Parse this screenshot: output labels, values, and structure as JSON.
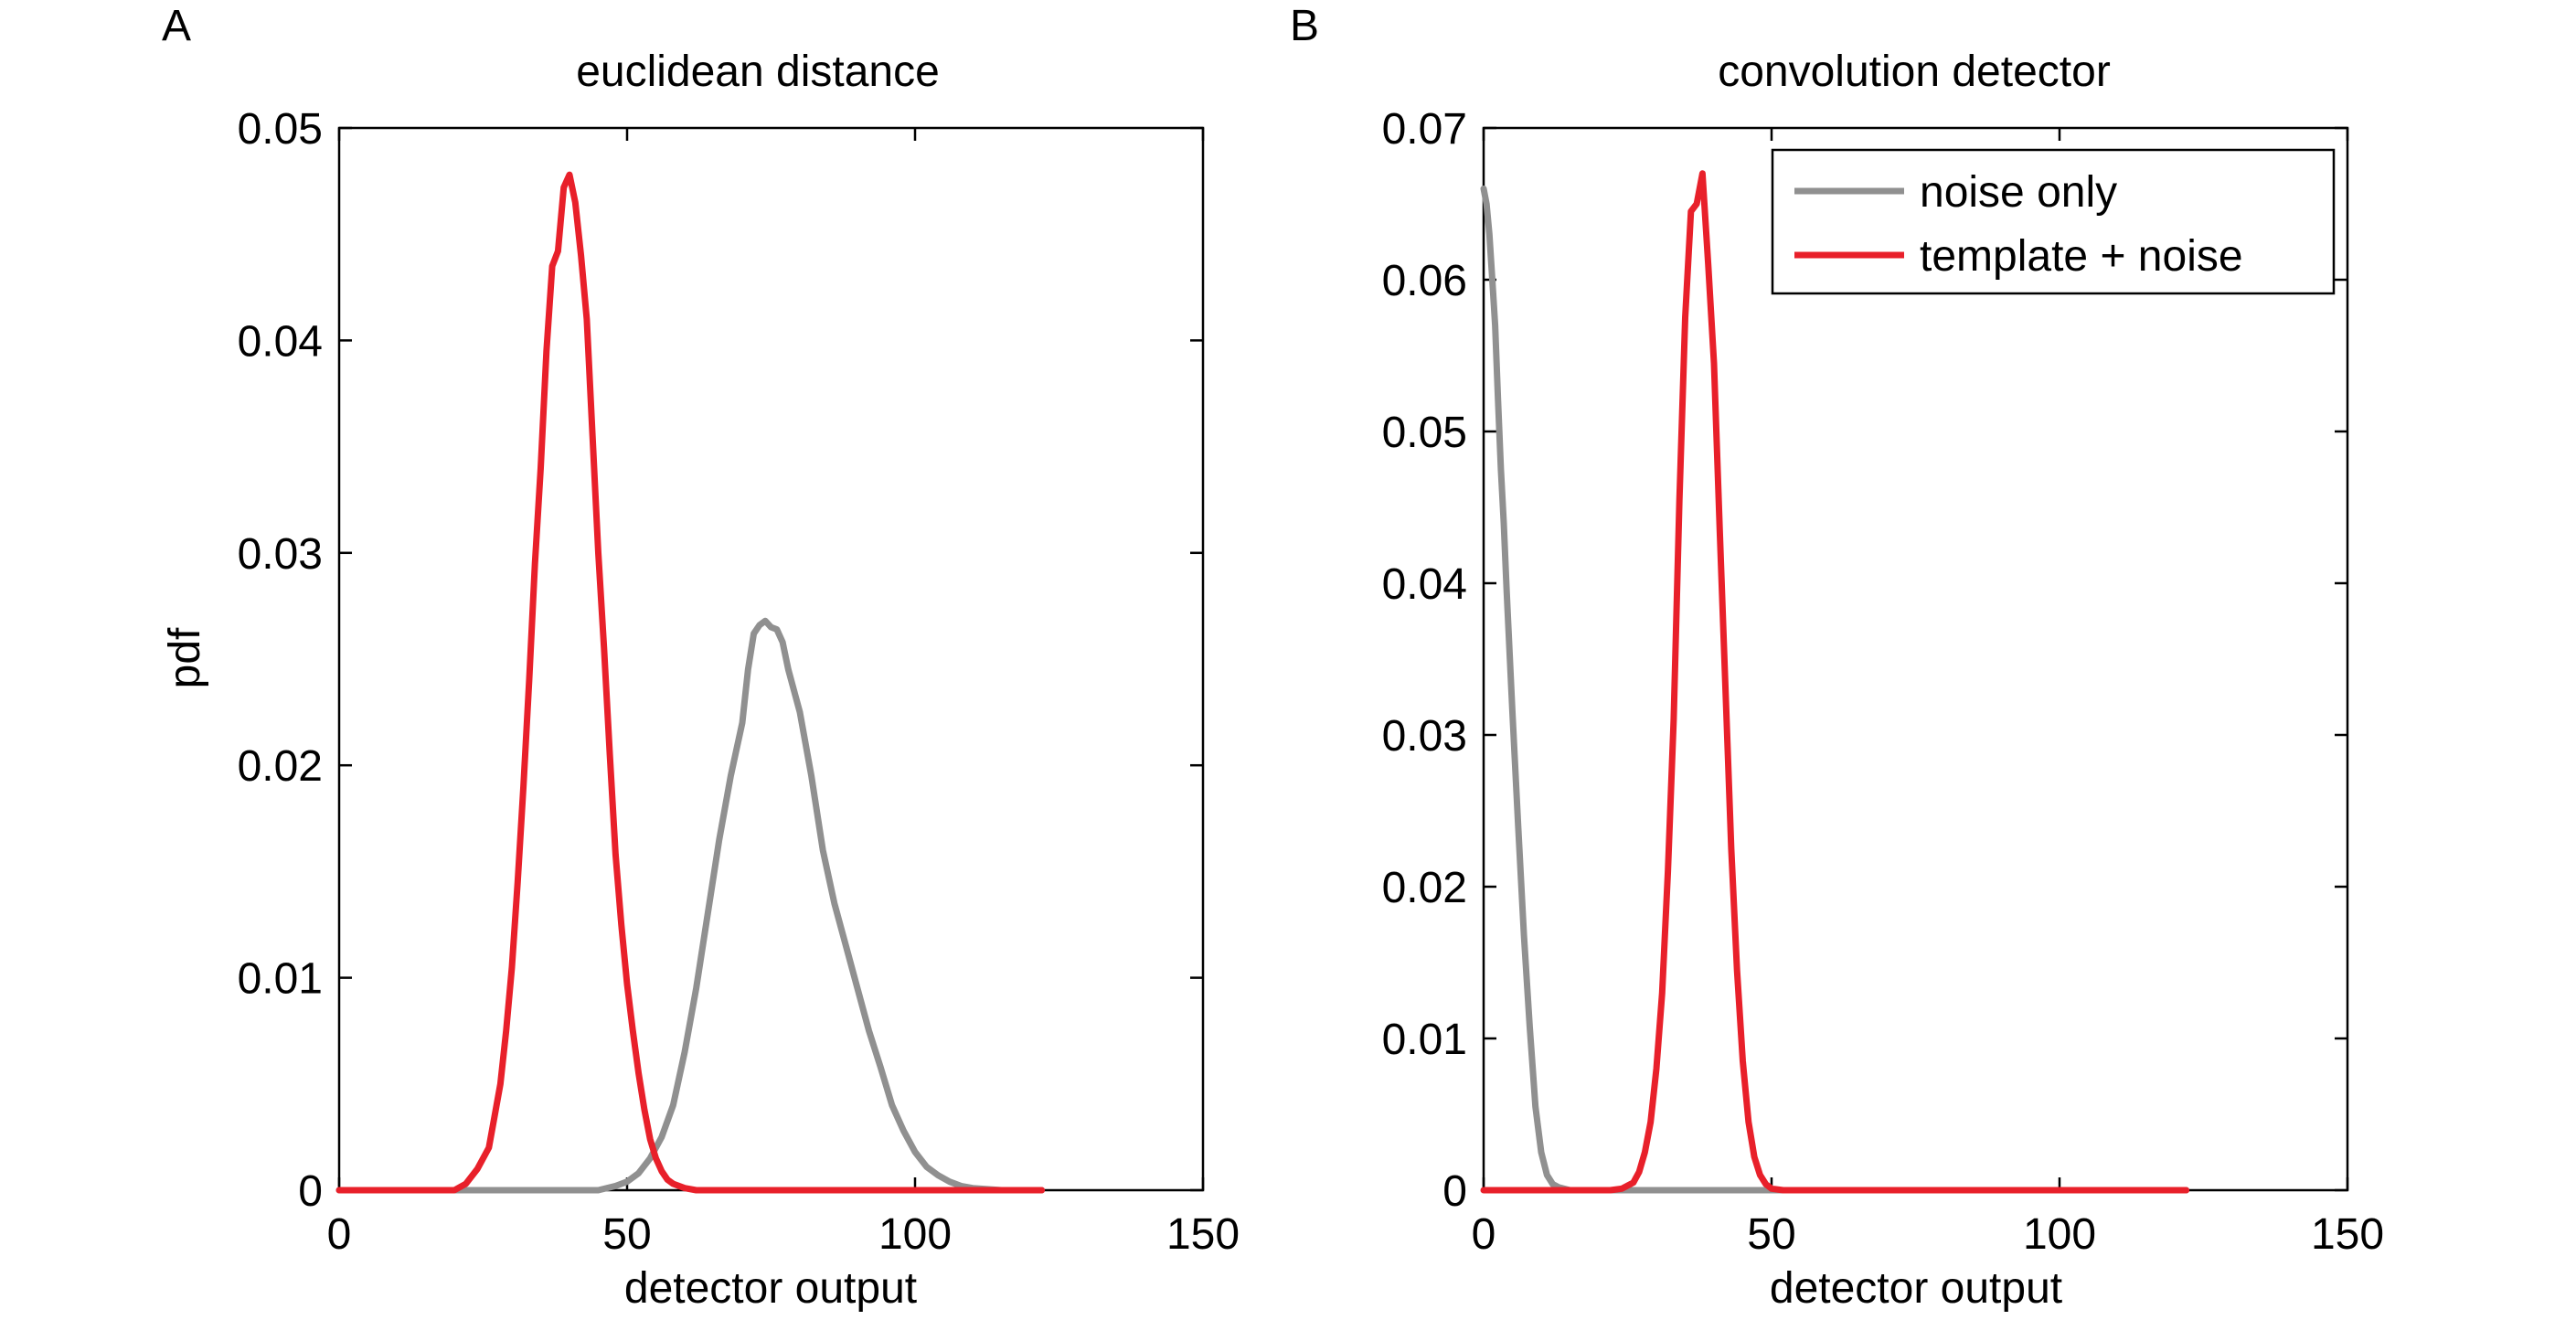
{
  "figure": {
    "panel_labels": [
      "A",
      "B"
    ]
  },
  "chart_data": [
    {
      "type": "line",
      "panel": "A",
      "title": "euclidean distance",
      "xlabel": "detector output",
      "ylabel": "pdf",
      "xlim": [
        0,
        150
      ],
      "ylim": [
        0,
        0.05
      ],
      "xticks": [
        0,
        50,
        100,
        150
      ],
      "yticks": [
        0,
        0.01,
        0.02,
        0.03,
        0.04,
        0.05
      ],
      "xtick_labels": [
        "0",
        "50",
        "100",
        "150"
      ],
      "ytick_labels": [
        "0",
        "0.01",
        "0.02",
        "0.03",
        "0.04",
        "0.05"
      ],
      "grid": false,
      "series": [
        {
          "name": "noise only",
          "color": "#909090",
          "x": [
            0,
            45,
            48,
            50,
            52,
            54,
            56,
            58,
            60,
            62,
            64,
            66,
            68,
            70,
            71,
            72,
            73,
            74,
            75,
            76,
            77,
            78,
            80,
            82,
            84,
            86,
            88,
            90,
            92,
            94,
            96,
            98,
            100,
            102,
            104,
            106,
            108,
            110,
            115,
            122
          ],
          "y": [
            0,
            0,
            0.0002,
            0.0004,
            0.0008,
            0.0015,
            0.0025,
            0.004,
            0.0065,
            0.0095,
            0.013,
            0.0165,
            0.0195,
            0.022,
            0.0245,
            0.0262,
            0.0266,
            0.0268,
            0.0265,
            0.0264,
            0.0258,
            0.0245,
            0.0225,
            0.0195,
            0.016,
            0.0135,
            0.0115,
            0.0095,
            0.0075,
            0.0058,
            0.004,
            0.0028,
            0.0018,
            0.0011,
            0.0007,
            0.0004,
            0.0002,
            0.0001,
            0,
            0
          ]
        },
        {
          "name": "template + noise",
          "color": "#e8202a",
          "x": [
            0,
            20,
            22,
            24,
            26,
            27,
            28,
            29,
            30,
            31,
            32,
            33,
            34,
            35,
            36,
            37,
            38,
            39,
            40,
            41,
            42,
            43,
            44,
            45,
            46,
            47,
            48,
            49,
            50,
            51,
            52,
            53,
            54,
            55,
            56,
            57,
            58,
            60,
            62,
            65,
            70,
            122
          ],
          "y": [
            0,
            0,
            0.0003,
            0.001,
            0.002,
            0.0035,
            0.005,
            0.0075,
            0.0105,
            0.0145,
            0.019,
            0.024,
            0.0295,
            0.034,
            0.0395,
            0.0435,
            0.0442,
            0.0472,
            0.0478,
            0.0465,
            0.044,
            0.041,
            0.0355,
            0.03,
            0.0255,
            0.0205,
            0.0158,
            0.0125,
            0.0097,
            0.0075,
            0.0055,
            0.0038,
            0.0024,
            0.0015,
            0.0009,
            0.0005,
            0.0003,
            0.0001,
            0,
            0,
            0,
            0
          ]
        }
      ]
    },
    {
      "type": "line",
      "panel": "B",
      "title": "convolution detector",
      "xlabel": "detector output",
      "ylabel": "",
      "xlim": [
        0,
        150
      ],
      "ylim": [
        0,
        0.07
      ],
      "xticks": [
        0,
        50,
        100,
        150
      ],
      "yticks": [
        0,
        0.01,
        0.02,
        0.03,
        0.04,
        0.05,
        0.06,
        0.07
      ],
      "xtick_labels": [
        "0",
        "50",
        "100",
        "150"
      ],
      "ytick_labels": [
        "0",
        "0.01",
        "0.02",
        "0.03",
        "0.04",
        "0.05",
        "0.06",
        "0.07"
      ],
      "grid": false,
      "legend_position": "top-right",
      "series": [
        {
          "name": "noise only",
          "color": "#909090",
          "x": [
            0,
            0.5,
            1,
            1.5,
            2,
            2.5,
            3,
            3.5,
            4,
            5,
            6,
            7,
            8,
            9,
            10,
            11,
            12,
            13,
            15,
            20,
            122
          ],
          "y": [
            0.066,
            0.065,
            0.063,
            0.06,
            0.057,
            0.052,
            0.0475,
            0.044,
            0.0395,
            0.0315,
            0.024,
            0.0168,
            0.0108,
            0.0055,
            0.0025,
            0.001,
            0.0004,
            0.0002,
            0,
            0,
            0
          ]
        },
        {
          "name": "template + noise",
          "color": "#e8202a",
          "x": [
            0,
            22,
            24,
            26,
            27,
            28,
            29,
            30,
            31,
            32,
            33,
            34,
            35,
            36,
            37,
            38,
            39,
            40,
            41,
            42,
            43,
            44,
            45,
            46,
            47,
            48,
            49,
            50,
            52,
            55,
            122
          ],
          "y": [
            0,
            0,
            0.0001,
            0.0005,
            0.0012,
            0.0025,
            0.0045,
            0.008,
            0.013,
            0.021,
            0.031,
            0.0455,
            0.0575,
            0.0645,
            0.065,
            0.067,
            0.061,
            0.0545,
            0.0435,
            0.033,
            0.0225,
            0.0145,
            0.0085,
            0.0045,
            0.0022,
            0.001,
            0.0004,
            0.0001,
            0,
            0,
            0
          ]
        }
      ]
    }
  ]
}
